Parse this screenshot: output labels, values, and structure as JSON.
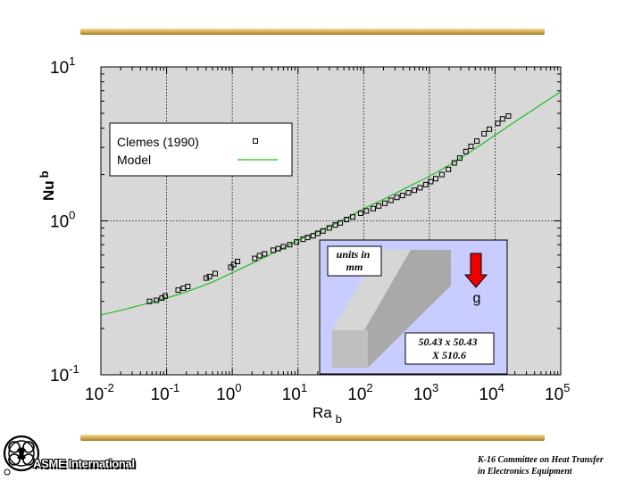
{
  "chart_data": {
    "type": "scatter",
    "x_scale": "log",
    "y_scale": "log",
    "xlim": [
      0.01,
      100000
    ],
    "ylim": [
      0.1,
      10
    ],
    "grid": true,
    "xlabel": "Ra",
    "xlabel_sub": "b",
    "ylabel": "Nu",
    "ylabel_sub": "b",
    "x_ticks": [
      {
        "base": "10",
        "exp": "-2",
        "value": 0.01
      },
      {
        "base": "10",
        "exp": "-1",
        "value": 0.1
      },
      {
        "base": "10",
        "exp": "0",
        "value": 1
      },
      {
        "base": "10",
        "exp": "1",
        "value": 10
      },
      {
        "base": "10",
        "exp": "2",
        "value": 100
      },
      {
        "base": "10",
        "exp": "3",
        "value": 1000
      },
      {
        "base": "10",
        "exp": "4",
        "value": 10000
      },
      {
        "base": "10",
        "exp": "5",
        "value": 100000
      }
    ],
    "y_ticks": [
      {
        "base": "10",
        "exp": "-1",
        "value": 0.1
      },
      {
        "base": "10",
        "exp": "0",
        "value": 1
      },
      {
        "base": "10",
        "exp": "1",
        "value": 10
      }
    ],
    "legend_position": "upper-left",
    "series": [
      {
        "name": "Clemes (1990)",
        "style": "markers",
        "marker": "open-square",
        "color": "#000000",
        "x": [
          0.055,
          0.07,
          0.085,
          0.095,
          0.15,
          0.18,
          0.21,
          0.4,
          0.45,
          0.55,
          0.95,
          1.05,
          1.2,
          2.2,
          2.6,
          3.1,
          4.2,
          5,
          6,
          7.5,
          9.5,
          12,
          14,
          17,
          20,
          24,
          30,
          37,
          44,
          55,
          68,
          90,
          110,
          140,
          170,
          210,
          260,
          320,
          390,
          480,
          590,
          720,
          880,
          1050,
          1250,
          1550,
          1950,
          2400,
          2900,
          3600,
          4300,
          5300,
          6800,
          8200,
          11000,
          13000,
          16000
        ],
        "y": [
          0.3,
          0.305,
          0.315,
          0.325,
          0.355,
          0.365,
          0.375,
          0.425,
          0.435,
          0.455,
          0.5,
          0.52,
          0.545,
          0.57,
          0.595,
          0.61,
          0.645,
          0.66,
          0.68,
          0.7,
          0.73,
          0.76,
          0.78,
          0.8,
          0.83,
          0.86,
          0.9,
          0.94,
          0.97,
          1.02,
          1.06,
          1.12,
          1.16,
          1.2,
          1.25,
          1.3,
          1.36,
          1.42,
          1.46,
          1.52,
          1.58,
          1.64,
          1.72,
          1.8,
          1.88,
          2,
          2.16,
          2.38,
          2.56,
          2.82,
          3.05,
          3.3,
          3.68,
          3.94,
          4.3,
          4.6,
          4.8
        ]
      },
      {
        "name": "Model",
        "style": "line",
        "color": "#22bb22",
        "x": [
          0.01,
          0.02,
          0.05,
          0.1,
          0.2,
          0.5,
          1,
          2,
          5,
          10,
          20,
          50,
          100,
          200,
          500,
          1000,
          2000,
          5000,
          10000,
          20000,
          50000,
          100000
        ],
        "y": [
          0.245,
          0.262,
          0.29,
          0.315,
          0.345,
          0.4,
          0.46,
          0.53,
          0.64,
          0.75,
          0.85,
          1.02,
          1.2,
          1.38,
          1.68,
          1.95,
          2.3,
          2.95,
          3.6,
          4.4,
          5.7,
          6.9
        ]
      }
    ],
    "inset": {
      "units_label": "units in\nmm",
      "gravity_label": "g",
      "dimensions_label": "50.43 x 50.43\nX 510.6"
    }
  },
  "footer": {
    "credit_line1": "K-16 Committee on Heat Transfer",
    "credit_line2": "in Electronics Equipment",
    "logo_text": "ASME International",
    "logo_icon": "asme-emblem-icon"
  }
}
